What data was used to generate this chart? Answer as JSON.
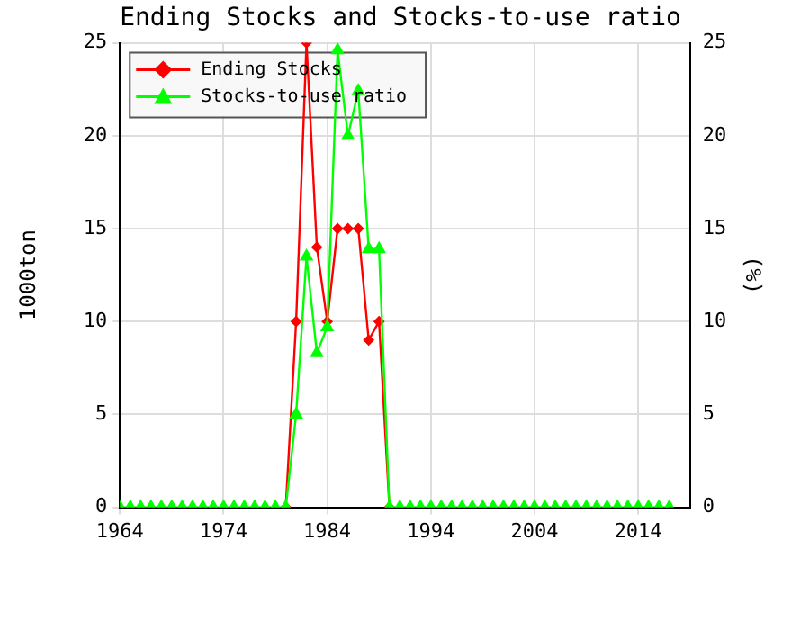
{
  "chart_data": {
    "type": "line",
    "title": "Ending Stocks and Stocks-to-use ratio",
    "ylabel": "1000ton",
    "y2label": "(%)",
    "x": [
      1964,
      1965,
      1966,
      1967,
      1968,
      1969,
      1970,
      1971,
      1972,
      1973,
      1974,
      1975,
      1976,
      1977,
      1978,
      1979,
      1980,
      1981,
      1982,
      1983,
      1984,
      1985,
      1986,
      1987,
      1988,
      1989,
      1990,
      1991,
      1992,
      1993,
      1994,
      1995,
      1996,
      1997,
      1998,
      1999,
      2000,
      2001,
      2002,
      2003,
      2004,
      2005,
      2006,
      2007,
      2008,
      2009,
      2010,
      2011,
      2012,
      2013,
      2014,
      2015,
      2016,
      2017
    ],
    "series": [
      {
        "name": "Ending Stocks",
        "color": "#ff0000",
        "marker": "diamond",
        "values": [
          null,
          null,
          null,
          null,
          null,
          null,
          null,
          null,
          null,
          null,
          null,
          null,
          null,
          null,
          null,
          null,
          0,
          10,
          25,
          14,
          10,
          15,
          15,
          15,
          9,
          10,
          0,
          null,
          null,
          null,
          null,
          null,
          null,
          null,
          null,
          null,
          null,
          null,
          null,
          null,
          null,
          null,
          null,
          null,
          null,
          null,
          null,
          null,
          null,
          null,
          null,
          null,
          null,
          null
        ]
      },
      {
        "name": "Stocks-to-use ratio",
        "color": "#00ff00",
        "marker": "triangle",
        "axis": "y2",
        "values": [
          0,
          0,
          0,
          0,
          0,
          0,
          0,
          0,
          0,
          0,
          0,
          0,
          0,
          0,
          0,
          0,
          0,
          5,
          13.5,
          8.3,
          9.7,
          24.6,
          20,
          22.4,
          13.9,
          13.9,
          0,
          0,
          0,
          0,
          0,
          0,
          0,
          0,
          0,
          0,
          0,
          0,
          0,
          0,
          0,
          0,
          0,
          0,
          0,
          0,
          0,
          0,
          0,
          0,
          0,
          0,
          0,
          0
        ]
      }
    ],
    "xlim": [
      1964,
      2019
    ],
    "xticks": [
      1964,
      1974,
      1984,
      1994,
      2004,
      2014
    ],
    "ylim": [
      0,
      25
    ],
    "yticks": [
      0,
      5,
      10,
      15,
      20,
      25
    ],
    "y2lim": [
      0,
      25
    ],
    "y2ticks": [
      0,
      5,
      10,
      15,
      20,
      25
    ],
    "grid": true,
    "legend": "top left"
  }
}
